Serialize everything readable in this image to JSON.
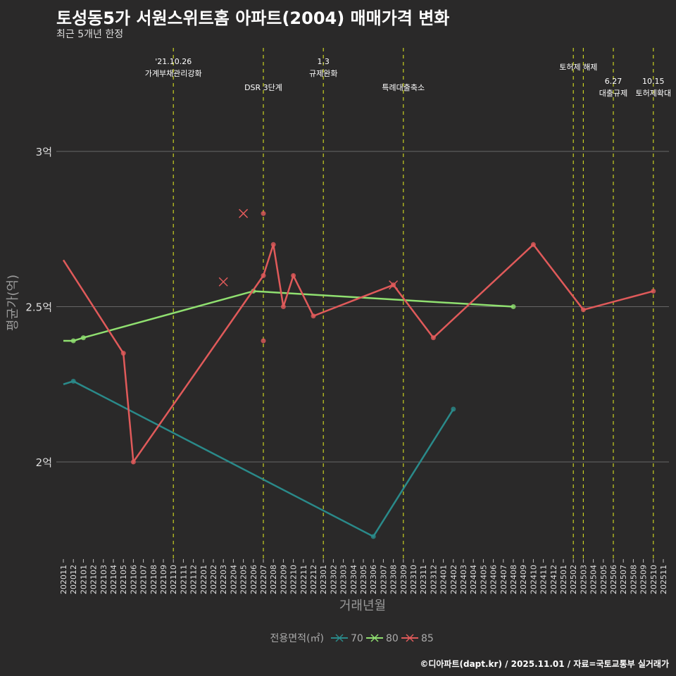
{
  "title": "토성동5가 서원스위트홈 아파트(2004) 매매가격 변화",
  "subtitle": "최근 5개년 한정",
  "footer": "©디아파트(dapt.kr) / 2025.11.01 / 자료=국토교통부 실거래가",
  "chart_data": {
    "type": "line",
    "xlabel": "거래년월",
    "ylabel": "평균가(억)",
    "ylim": [
      1.7,
      3.3
    ],
    "yticks": [
      {
        "v": 2,
        "label": "2억"
      },
      {
        "v": 2.5,
        "label": "2.5억"
      },
      {
        "v": 3,
        "label": "3억"
      }
    ],
    "x_start": "202011",
    "x_end": "202511",
    "legend": {
      "title": "전용면적(㎡)",
      "position": "bottom"
    },
    "series": [
      {
        "name": "70",
        "color": "#2a8a8a",
        "points": [
          [
            "202011",
            2.25
          ],
          [
            "202012",
            2.26
          ],
          [
            "202306",
            1.76
          ],
          [
            "202402",
            2.17
          ]
        ]
      },
      {
        "name": "80",
        "color": "#90e070",
        "points": [
          [
            "202011",
            2.39
          ],
          [
            "202012",
            2.39
          ],
          [
            "202101",
            2.4
          ],
          [
            "202206",
            2.55
          ],
          [
            "202408",
            2.5
          ]
        ]
      },
      {
        "name": "85",
        "color": "#e05a5a",
        "points": [
          [
            "202011",
            2.65
          ],
          [
            "202105",
            2.35
          ],
          [
            "202106",
            2.0
          ],
          [
            "202207",
            2.6
          ],
          [
            "202208",
            2.7
          ],
          [
            "202209",
            2.5
          ],
          [
            "202210",
            2.6
          ],
          [
            "202212",
            2.47
          ],
          [
            "202308",
            2.57
          ],
          [
            "202312",
            2.4
          ],
          [
            "202410",
            2.7
          ],
          [
            "202503",
            2.49
          ],
          [
            "202510",
            2.55
          ]
        ]
      }
    ],
    "scatter": [
      {
        "series": "85",
        "x": "202207",
        "y": 2.8,
        "shape": "dot"
      },
      {
        "series": "85",
        "x": "202207",
        "y": 2.39,
        "shape": "dot"
      },
      {
        "series": "85",
        "x": "202203",
        "y": 2.58,
        "shape": "x"
      },
      {
        "series": "85",
        "x": "202205",
        "y": 2.8,
        "shape": "x"
      },
      {
        "series": "85",
        "x": "202308",
        "y": 2.57,
        "shape": "x"
      }
    ],
    "events": [
      {
        "x": "202110",
        "lines": [
          "'21.10.26",
          "가계부채관리강화"
        ],
        "row": 0
      },
      {
        "x": "202207",
        "lines": [
          "DSR 3단계"
        ],
        "row": 1
      },
      {
        "x": "202301",
        "lines": [
          "1.3",
          "규제완화"
        ],
        "row": 0
      },
      {
        "x": "202309",
        "lines": [
          "특례대출축소"
        ],
        "row": 1
      },
      {
        "x": "202502",
        "lines": [],
        "row": 0
      },
      {
        "x": "202503",
        "lines": [
          "토허제 해제"
        ],
        "row": 0,
        "shift": -0.5
      },
      {
        "x": "202506",
        "lines": [
          "6.27",
          "대출규제"
        ],
        "row": 2
      },
      {
        "x": "202510",
        "lines": [
          "10.15",
          "토허제확대"
        ],
        "row": 2
      }
    ]
  }
}
